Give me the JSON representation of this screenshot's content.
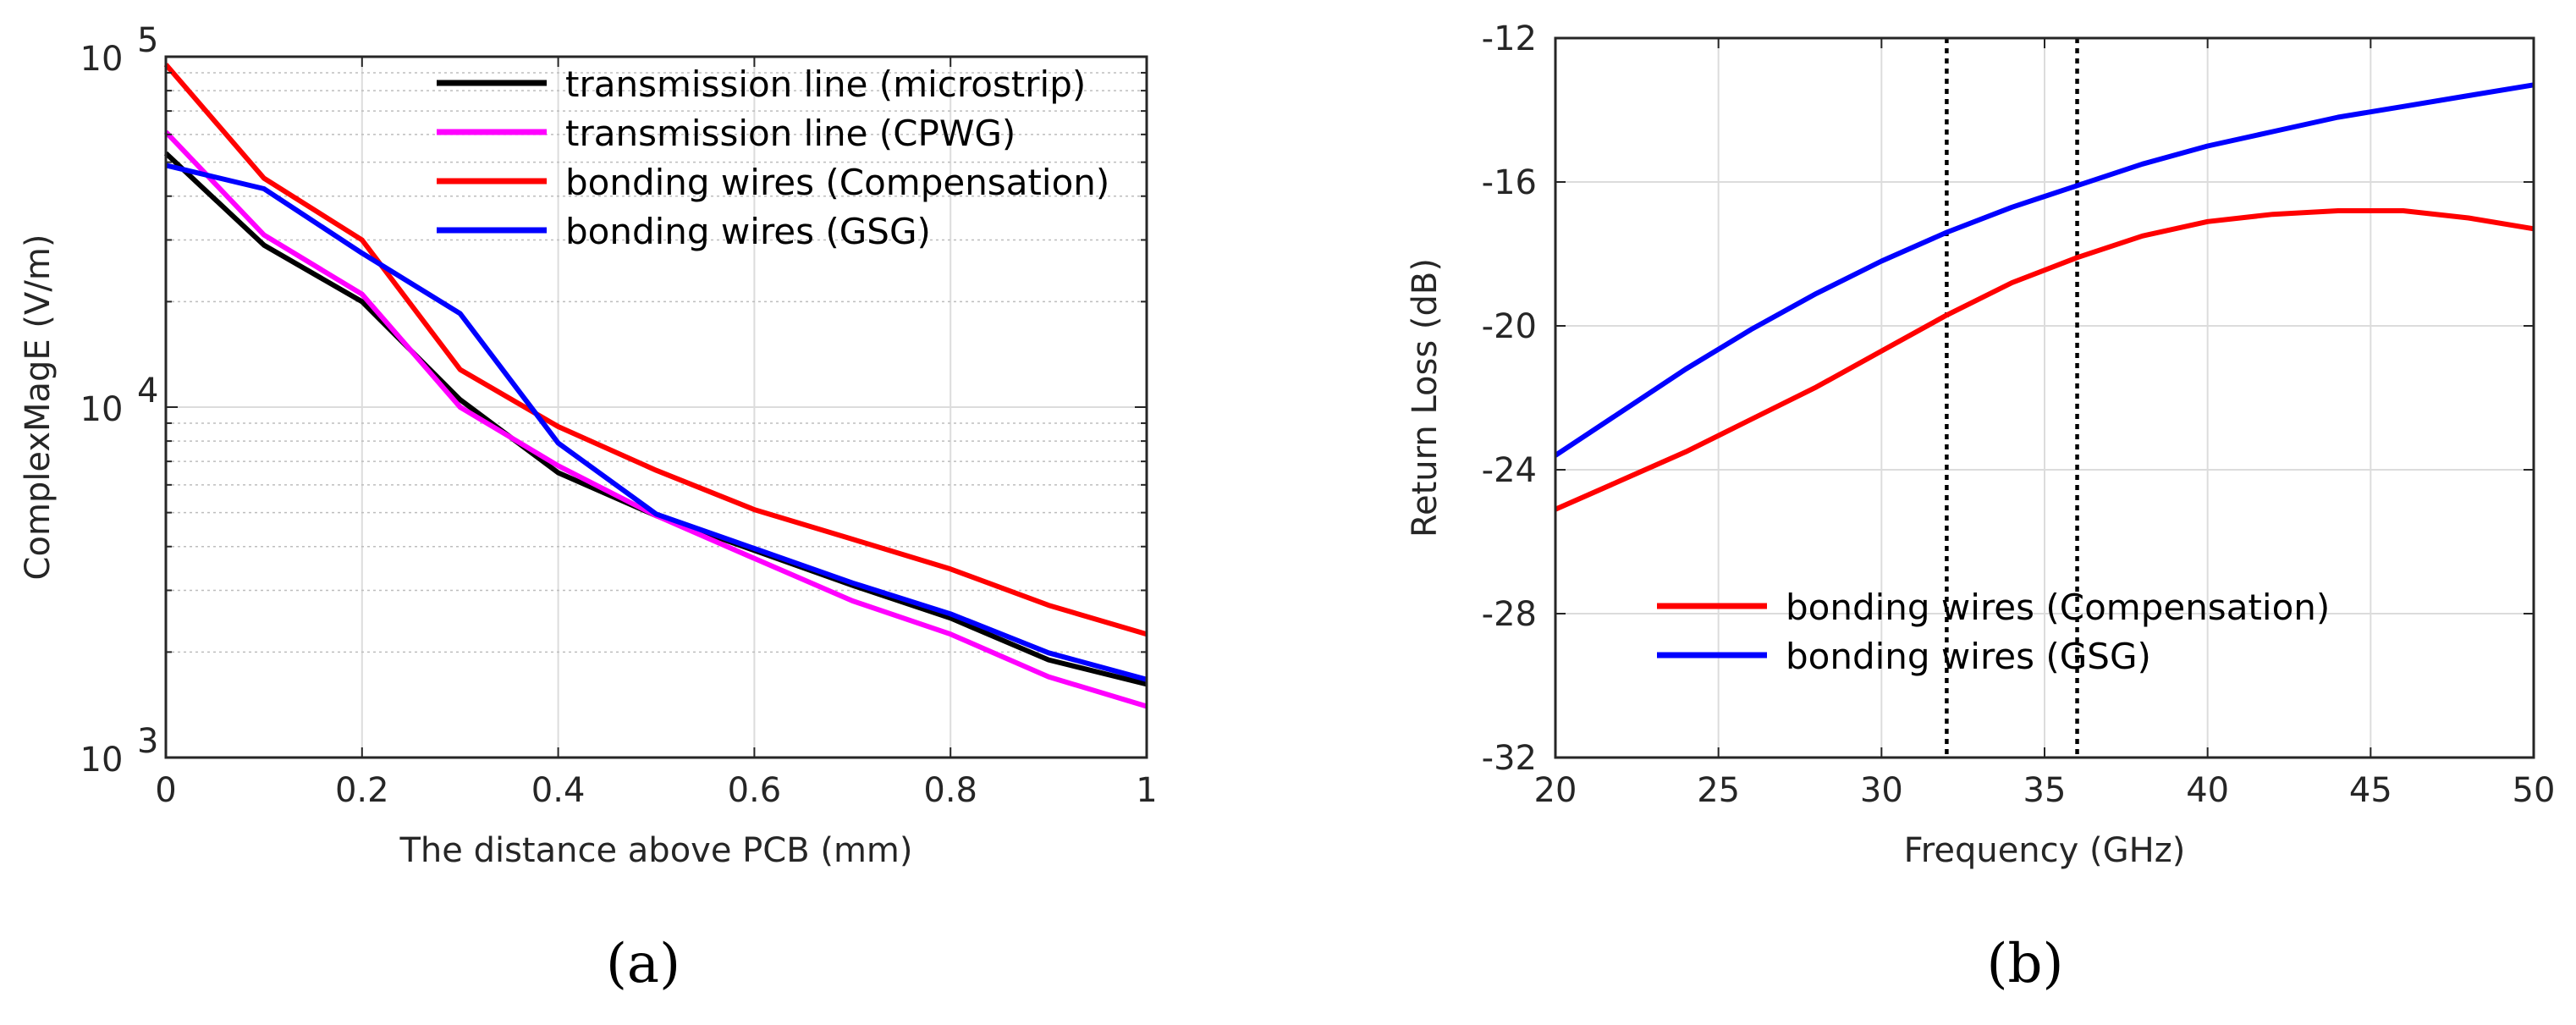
{
  "chart_data": [
    {
      "type": "line",
      "panel": "a",
      "panel_label": "(a)",
      "xlabel": "The distance above PCB (mm)",
      "ylabel": "ComplexMagE (V/m)",
      "xlim": [
        0,
        1
      ],
      "ylim": [
        1000,
        100000
      ],
      "yscale": "log",
      "xticks": [
        0,
        0.2,
        0.4,
        0.6,
        0.8,
        1
      ],
      "xtick_labels": [
        "0",
        "0.2",
        "0.4",
        "0.6",
        "0.8",
        "1"
      ],
      "yticks": [
        1000,
        10000,
        100000
      ],
      "ytick_labels": [
        {
          "base": "10",
          "exp": "3"
        },
        {
          "base": "10",
          "exp": "4"
        },
        {
          "base": "10",
          "exp": "5"
        }
      ],
      "grid": true,
      "legend_position": "top-right",
      "series": [
        {
          "name": "transmission line (microstrip)",
          "color": "#000000",
          "x": [
            0,
            0.1,
            0.2,
            0.3,
            0.4,
            0.5,
            0.6,
            0.7,
            0.8,
            0.9,
            1.0
          ],
          "values": [
            53000,
            29000,
            20000,
            10500,
            6500,
            4900,
            3900,
            3100,
            2500,
            1900,
            1620
          ]
        },
        {
          "name": "transmission line (CPWG)",
          "color": "#ff00ff",
          "x": [
            0,
            0.1,
            0.2,
            0.3,
            0.4,
            0.5,
            0.6,
            0.7,
            0.8,
            0.9,
            1.0
          ],
          "values": [
            61000,
            31000,
            21000,
            10000,
            6800,
            4900,
            3700,
            2800,
            2250,
            1700,
            1400
          ]
        },
        {
          "name": "bonding wires (Compensation)",
          "color": "#ff0000",
          "x": [
            0,
            0.1,
            0.2,
            0.3,
            0.4,
            0.5,
            0.6,
            0.7,
            0.8,
            0.9,
            1.0
          ],
          "values": [
            95000,
            45000,
            30000,
            12800,
            8800,
            6600,
            5100,
            4200,
            3450,
            2720,
            2250
          ]
        },
        {
          "name": "bonding wires (GSG)",
          "color": "#0000ff",
          "x": [
            0,
            0.1,
            0.2,
            0.3,
            0.4,
            0.5,
            0.6,
            0.7,
            0.8,
            0.9,
            1.0
          ],
          "values": [
            49000,
            42000,
            27500,
            18500,
            7900,
            4950,
            3950,
            3150,
            2570,
            1990,
            1670
          ]
        }
      ]
    },
    {
      "type": "line",
      "panel": "b",
      "panel_label": "(b)",
      "xlabel": "Frequency (GHz)",
      "ylabel": "Return Loss (dB)",
      "xlim": [
        20,
        50
      ],
      "ylim": [
        -32,
        -12
      ],
      "xticks": [
        20,
        25,
        30,
        35,
        40,
        45,
        50
      ],
      "yticks": [
        -32,
        -28,
        -24,
        -20,
        -16,
        -12
      ],
      "grid": true,
      "legend_position": "lower-left",
      "vertical_lines": [
        {
          "x": 32,
          "style": "dotted"
        },
        {
          "x": 36,
          "style": "dotted"
        }
      ],
      "series": [
        {
          "name": "bonding wires (Compensation)",
          "color": "#ff0000",
          "x": [
            20,
            22,
            24,
            26,
            28,
            30,
            32,
            34,
            36,
            38,
            40,
            42,
            44,
            46,
            48,
            50
          ],
          "values": [
            -25.1,
            -24.3,
            -23.5,
            -22.6,
            -21.7,
            -20.7,
            -19.7,
            -18.8,
            -18.1,
            -17.5,
            -17.1,
            -16.9,
            -16.8,
            -16.8,
            -17.0,
            -17.3
          ]
        },
        {
          "name": "bonding wires (GSG)",
          "color": "#0000ff",
          "x": [
            20,
            22,
            24,
            26,
            28,
            30,
            32,
            34,
            36,
            38,
            40,
            42,
            44,
            46,
            48,
            50
          ],
          "values": [
            -23.6,
            -22.4,
            -21.2,
            -20.1,
            -19.1,
            -18.2,
            -17.4,
            -16.7,
            -16.1,
            -15.5,
            -15.0,
            -14.6,
            -14.2,
            -13.9,
            -13.6,
            -13.3
          ]
        }
      ]
    }
  ]
}
